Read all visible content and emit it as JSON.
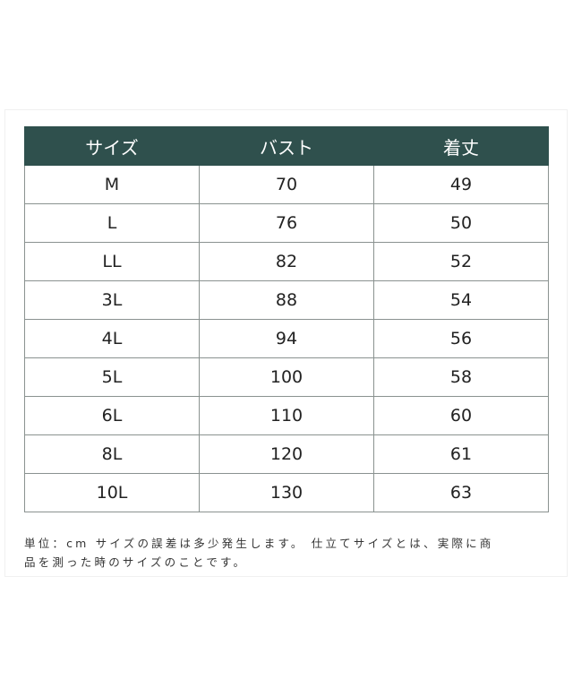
{
  "table": {
    "headers": [
      "サイズ",
      "バスト",
      "着丈"
    ],
    "rows": [
      [
        "M",
        "70",
        "49"
      ],
      [
        "L",
        "76",
        "50"
      ],
      [
        "LL",
        "82",
        "52"
      ],
      [
        "3L",
        "88",
        "54"
      ],
      [
        "4L",
        "94",
        "56"
      ],
      [
        "5L",
        "100",
        "58"
      ],
      [
        "6L",
        "110",
        "60"
      ],
      [
        "8L",
        "120",
        "61"
      ],
      [
        "10L",
        "130",
        "63"
      ]
    ],
    "header_color": "#2f504d"
  },
  "note": {
    "line1": "単位：cm サイズの誤差は多少発生します。 仕立てサイズとは、実際に商",
    "line2": "品を測った時のサイズのことです。"
  }
}
